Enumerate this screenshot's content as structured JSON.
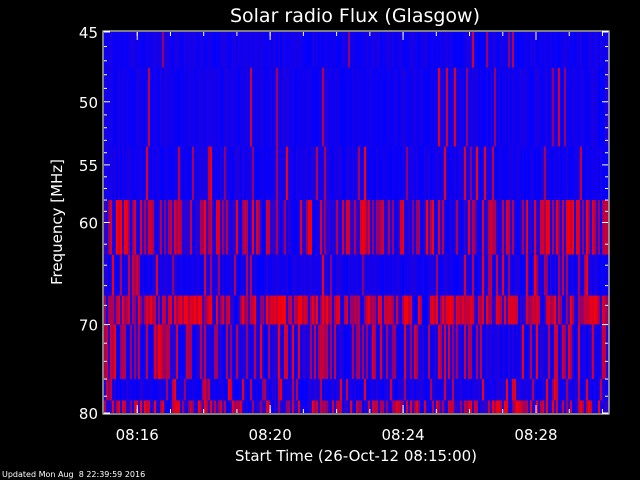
{
  "chart_data": {
    "type": "heatmap",
    "title": "Solar radio Flux (Glasgow)",
    "xlabel": "Start Time (26-Oct-12 08:15:00)",
    "ylabel": "Frequency [MHz]",
    "x_ticks": [
      "08:16",
      "08:20",
      "08:24",
      "08:28"
    ],
    "y_ticks": [
      45,
      50,
      55,
      60,
      70,
      80
    ],
    "y_axis_scale": "log",
    "ylim": [
      45,
      80
    ],
    "xlim": [
      "08:15:00",
      "08:30:10"
    ],
    "color_scale": {
      "low": "#0000ff",
      "high": "#ff0000"
    },
    "bands": [
      {
        "freq_range": [
          45.0,
          47.5
        ],
        "mean_intensity": 0.05,
        "red_density": 0.02
      },
      {
        "freq_range": [
          47.5,
          53.5
        ],
        "mean_intensity": 0.06,
        "red_density": 0.06
      },
      {
        "freq_range": [
          53.5,
          58.0
        ],
        "mean_intensity": 0.08,
        "red_density": 0.08
      },
      {
        "freq_range": [
          58.0,
          63.0
        ],
        "mean_intensity": 0.45,
        "red_density": 0.45
      },
      {
        "freq_range": [
          63.0,
          67.0
        ],
        "mean_intensity": 0.12,
        "red_density": 0.12
      },
      {
        "freq_range": [
          67.0,
          70.0
        ],
        "mean_intensity": 0.65,
        "red_density": 0.7
      },
      {
        "freq_range": [
          70.0,
          76.0
        ],
        "mean_intensity": 0.3,
        "red_density": 0.35
      },
      {
        "freq_range": [
          76.0,
          78.5
        ],
        "mean_intensity": 0.18,
        "red_density": 0.2
      },
      {
        "freq_range": [
          78.5,
          80.0
        ],
        "mean_intensity": 0.4,
        "red_density": 0.5
      }
    ]
  },
  "footer": {
    "updated_text": "Updated Mon Aug  8 22:39:59 2016"
  }
}
